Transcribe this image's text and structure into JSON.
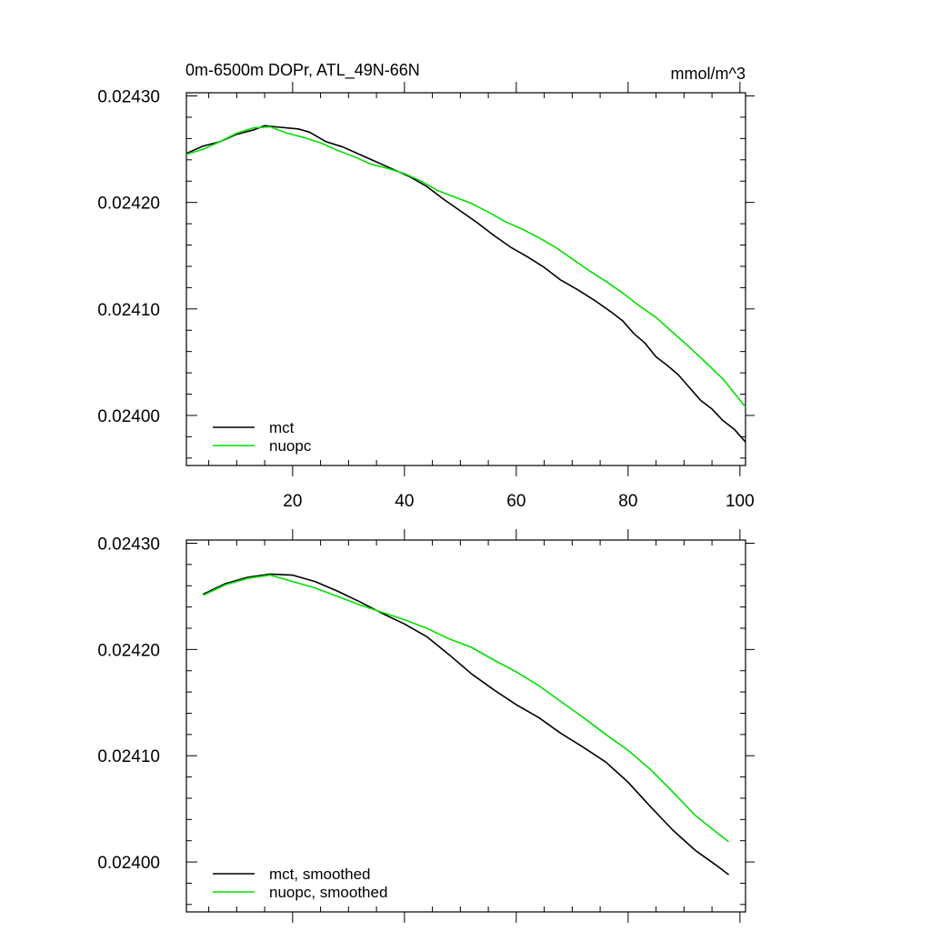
{
  "header": {
    "title": "0m-6500m DOPr, ATL_49N-66N",
    "units": "mmol/m^3"
  },
  "colors": {
    "mct": "#000000",
    "nuopc": "#00e000",
    "axis": "#000000",
    "background": "#ffffff"
  },
  "chart_data": [
    {
      "type": "line",
      "title": "0m-6500m DOPr, ATL_49N-66N",
      "units": "mmol/m^3",
      "xlabel": "",
      "ylabel": "",
      "xlim": [
        1,
        101
      ],
      "ylim": [
        0.023953,
        0.024303
      ],
      "xticks": [
        20,
        40,
        60,
        80,
        100
      ],
      "xtick_labels": [
        "20",
        "40",
        "60",
        "80",
        "100"
      ],
      "yticks": [
        0.024,
        0.0241,
        0.0242,
        0.0243
      ],
      "ytick_labels": [
        "0.02400",
        "0.02410",
        "0.02420",
        "0.02430"
      ],
      "grid": false,
      "legend_position": "bottom-left",
      "series": [
        {
          "name": "mct",
          "color": "#000000",
          "x": [
            1,
            4,
            7,
            10,
            13,
            15,
            17,
            19,
            21,
            23,
            26,
            29,
            32,
            35,
            38,
            41,
            44,
            47,
            50,
            53,
            56,
            59,
            62,
            65,
            68,
            71,
            74,
            77,
            79,
            81,
            83,
            85,
            87,
            89,
            91,
            93,
            95,
            97,
            99,
            101
          ],
          "y": [
            0.024246,
            0.024253,
            0.024257,
            0.024264,
            0.024268,
            0.024272,
            0.024271,
            0.02427,
            0.024269,
            0.024266,
            0.024257,
            0.024252,
            0.024245,
            0.024238,
            0.024231,
            0.024224,
            0.024215,
            0.024203,
            0.024192,
            0.024181,
            0.024169,
            0.024158,
            0.024149,
            0.024139,
            0.024127,
            0.024118,
            0.024108,
            0.024097,
            0.024089,
            0.024077,
            0.024068,
            0.024055,
            0.024047,
            0.024038,
            0.024026,
            0.024014,
            0.024006,
            0.023995,
            0.023987,
            0.023975
          ]
        },
        {
          "name": "nuopc",
          "color": "#00e000",
          "x": [
            1,
            4,
            7,
            10,
            13,
            16,
            19,
            22,
            25,
            28,
            31,
            34,
            37,
            40,
            43,
            46,
            49,
            52,
            55,
            58,
            61,
            64,
            67,
            70,
            73,
            76,
            79,
            82,
            85,
            88,
            91,
            94,
            97,
            101
          ],
          "y": [
            0.024245,
            0.02425,
            0.024257,
            0.024265,
            0.02427,
            0.024271,
            0.024265,
            0.024261,
            0.024256,
            0.024249,
            0.024243,
            0.024236,
            0.024232,
            0.024227,
            0.02422,
            0.024211,
            0.024205,
            0.024199,
            0.024191,
            0.024182,
            0.024175,
            0.024167,
            0.024158,
            0.024147,
            0.024136,
            0.024126,
            0.024115,
            0.024103,
            0.024092,
            0.024078,
            0.024064,
            0.024049,
            0.024034,
            0.024008
          ]
        }
      ]
    },
    {
      "type": "line",
      "title": "",
      "xlabel": "",
      "ylabel": "",
      "xlim": [
        1,
        101
      ],
      "ylim": [
        0.023953,
        0.024303
      ],
      "xticks": [
        20,
        40,
        60,
        80,
        100
      ],
      "xtick_labels": [],
      "yticks": [
        0.024,
        0.0241,
        0.0242,
        0.0243
      ],
      "ytick_labels": [
        "0.02400",
        "0.02410",
        "0.02420",
        "0.02430"
      ],
      "grid": false,
      "legend_position": "bottom-left",
      "series": [
        {
          "name": "mct, smoothed",
          "color": "#000000",
          "x": [
            4,
            8,
            12,
            16,
            20,
            24,
            28,
            32,
            36,
            40,
            44,
            48,
            52,
            56,
            60,
            64,
            68,
            72,
            76,
            80,
            84,
            88,
            92,
            96,
            98
          ],
          "y": [
            0.024252,
            0.024262,
            0.024268,
            0.024271,
            0.02427,
            0.024264,
            0.024255,
            0.024245,
            0.024234,
            0.024224,
            0.024212,
            0.024195,
            0.024177,
            0.024162,
            0.024148,
            0.024136,
            0.024121,
            0.024108,
            0.024094,
            0.024075,
            0.024052,
            0.02403,
            0.024011,
            0.023996,
            0.023988
          ]
        },
        {
          "name": "nuopc, smoothed",
          "color": "#00e000",
          "x": [
            4,
            8,
            12,
            16,
            20,
            24,
            28,
            32,
            36,
            40,
            44,
            48,
            52,
            56,
            60,
            64,
            68,
            72,
            76,
            80,
            84,
            88,
            92,
            96,
            98
          ],
          "y": [
            0.024251,
            0.024261,
            0.024267,
            0.02427,
            0.024264,
            0.024258,
            0.02425,
            0.024242,
            0.024235,
            0.024228,
            0.02422,
            0.02421,
            0.024202,
            0.02419,
            0.024179,
            0.024166,
            0.024151,
            0.024136,
            0.02412,
            0.024105,
            0.024087,
            0.024066,
            0.024044,
            0.024027,
            0.024019
          ]
        }
      ]
    }
  ]
}
